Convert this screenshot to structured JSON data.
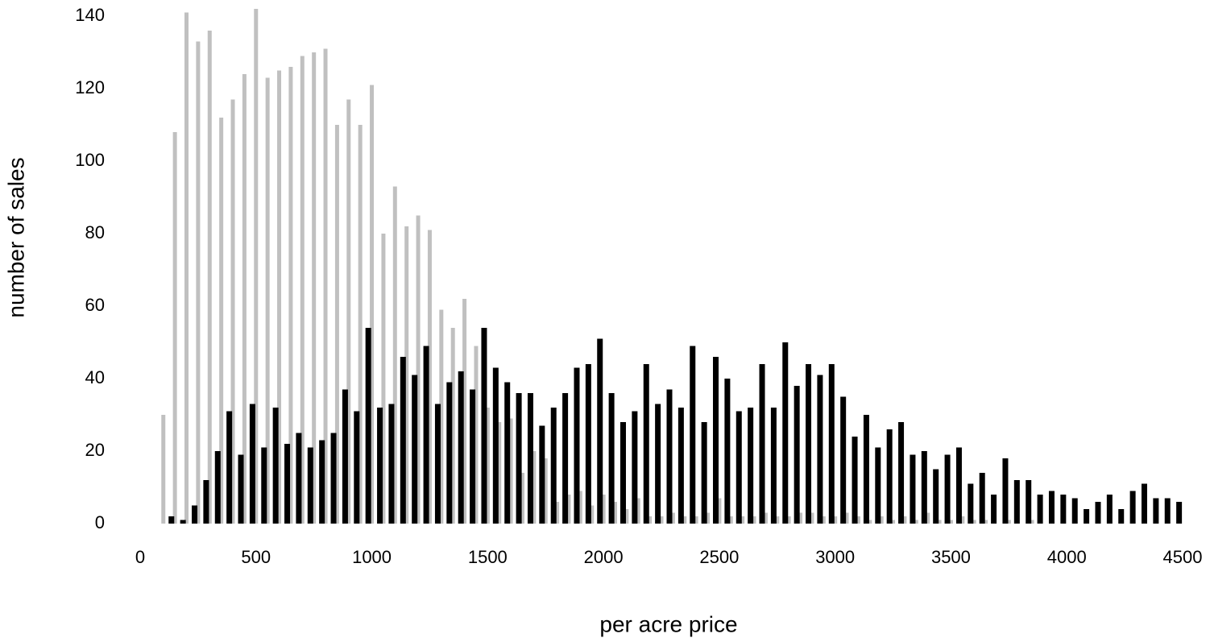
{
  "chart_data": {
    "type": "bar",
    "x_label": "per acre price",
    "y_label": "number of sales",
    "x": [
      100,
      150,
      200,
      250,
      300,
      350,
      400,
      450,
      500,
      550,
      600,
      650,
      700,
      750,
      800,
      850,
      900,
      950,
      1000,
      1050,
      1100,
      1150,
      1200,
      1250,
      1300,
      1350,
      1400,
      1450,
      1500,
      1550,
      1600,
      1650,
      1700,
      1750,
      1800,
      1850,
      1900,
      1950,
      2000,
      2050,
      2100,
      2150,
      2200,
      2250,
      2300,
      2350,
      2400,
      2450,
      2500,
      2550,
      2600,
      2650,
      2700,
      2750,
      2800,
      2850,
      2900,
      2950,
      3000,
      3050,
      3100,
      3150,
      3200,
      3250,
      3300,
      3350,
      3400,
      3450,
      3500,
      3550,
      3600,
      3650,
      3700,
      3750,
      3800,
      3850,
      3900,
      3950,
      4000,
      4050,
      4100,
      4150,
      4200,
      4250,
      4300,
      4350,
      4400,
      4450
    ],
    "series": [
      {
        "color": "#c0c0c0",
        "values": [
          30,
          108,
          141,
          133,
          136,
          112,
          117,
          124,
          142,
          123,
          125,
          126,
          129,
          130,
          131,
          110,
          117,
          110,
          121,
          80,
          93,
          82,
          85,
          81,
          59,
          54,
          62,
          49,
          32,
          28,
          29,
          14,
          20,
          18,
          6,
          8,
          9,
          5,
          8,
          6,
          4,
          7,
          2,
          2,
          3,
          2,
          2,
          3,
          7,
          2,
          2,
          2,
          3,
          2,
          2,
          3,
          3,
          2,
          2,
          3,
          2,
          1,
          2,
          1,
          2,
          1,
          3,
          1,
          1,
          2,
          1,
          1,
          0,
          1,
          0,
          1,
          0,
          0,
          0,
          0,
          0,
          0,
          0,
          0,
          0,
          0,
          0,
          0
        ]
      },
      {
        "color": "#000000",
        "values": [
          2,
          1,
          5,
          12,
          20,
          31,
          19,
          33,
          21,
          32,
          22,
          25,
          21,
          23,
          25,
          37,
          31,
          54,
          32,
          33,
          46,
          41,
          49,
          33,
          39,
          42,
          37,
          54,
          43,
          39,
          36,
          36,
          27,
          32,
          36,
          43,
          44,
          51,
          36,
          28,
          31,
          44,
          33,
          37,
          32,
          49,
          28,
          46,
          40,
          31,
          32,
          44,
          32,
          50,
          38,
          44,
          41,
          44,
          35,
          24,
          30,
          21,
          26,
          28,
          19,
          20,
          15,
          19,
          21,
          11,
          14,
          8,
          18,
          12,
          12,
          8,
          9,
          8,
          7,
          4,
          6,
          8,
          4,
          9,
          11,
          7,
          7,
          6
        ]
      }
    ],
    "xlim": [
      0,
      4500
    ],
    "xticks": [
      0,
      500,
      1000,
      1500,
      2000,
      2500,
      3000,
      3500,
      4000,
      4500
    ],
    "ylim": [
      0,
      140
    ],
    "yticks": [
      0,
      20,
      40,
      60,
      80,
      100,
      120,
      140
    ]
  }
}
